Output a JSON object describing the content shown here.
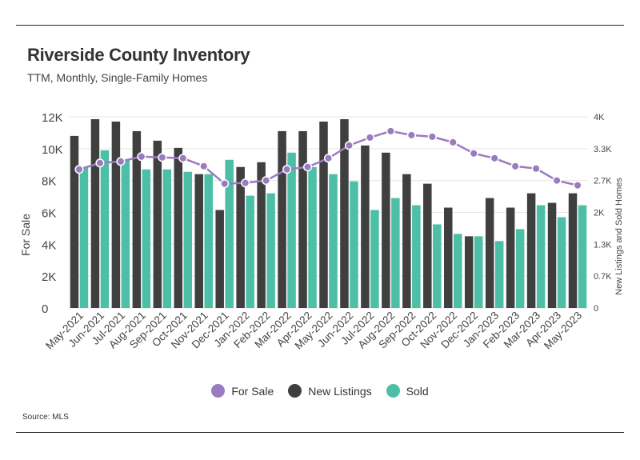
{
  "title": "Riverside County Inventory",
  "subtitle": "TTM, Monthly, Single-Family Homes",
  "source": "Source: MLS",
  "colors": {
    "for_sale": "#9b7bbf",
    "new_listings": "#3f3f3f",
    "sold": "#4cbfa6"
  },
  "chart_data": {
    "type": "bar",
    "categories": [
      "May-2021",
      "Jun-2021",
      "Jul-2021",
      "Aug-2021",
      "Sep-2021",
      "Oct-2021",
      "Nov-2021",
      "Dec-2021",
      "Jan-2022",
      "Feb-2022",
      "Mar-2022",
      "Apr-2022",
      "May-2022",
      "Jun-2022",
      "Jul-2022",
      "Aug-2022",
      "Sep-2022",
      "Oct-2022",
      "Nov-2022",
      "Dec-2022",
      "Jan-2023",
      "Feb-2023",
      "Mar-2023",
      "Apr-2023",
      "May-2023"
    ],
    "left_axis": {
      "label": "For Sale",
      "ticks": [
        "0",
        "2K",
        "4K",
        "6K",
        "8K",
        "10K",
        "12K"
      ],
      "range": [
        0,
        12000
      ]
    },
    "right_axis": {
      "label": "New Listings and Sold Homes",
      "ticks": [
        "0",
        "0.7K",
        "1.3K",
        "2K",
        "2.7K",
        "3.3K",
        "4K"
      ],
      "range": [
        0,
        4000
      ]
    },
    "series": [
      {
        "name": "For Sale",
        "type": "line",
        "axis": "left",
        "values": [
          8700,
          9100,
          9200,
          9500,
          9450,
          9400,
          8900,
          7800,
          7850,
          8000,
          8700,
          8850,
          9400,
          10200,
          10700,
          11100,
          10850,
          10750,
          10400,
          9700,
          9400,
          8900,
          8750,
          8000,
          7700
        ]
      },
      {
        "name": "New Listings",
        "type": "bar",
        "axis": "right",
        "values": [
          3600,
          3950,
          3900,
          3700,
          3500,
          3350,
          2800,
          2050,
          2950,
          3050,
          3700,
          3700,
          3900,
          3950,
          3400,
          3250,
          2800,
          2600,
          2100,
          1500,
          2300,
          2100,
          2400,
          2200,
          2400
        ]
      },
      {
        "name": "Sold",
        "type": "bar",
        "axis": "right",
        "values": [
          2950,
          3300,
          3100,
          2900,
          2900,
          2850,
          2800,
          3100,
          2350,
          2400,
          3250,
          2950,
          2800,
          2650,
          2050,
          2300,
          2150,
          1750,
          1550,
          1500,
          1400,
          1650,
          2150,
          1900,
          2150
        ]
      }
    ],
    "legend": {
      "position": "bottom",
      "entries": [
        "For Sale",
        "New Listings",
        "Sold"
      ]
    },
    "grid": true
  }
}
